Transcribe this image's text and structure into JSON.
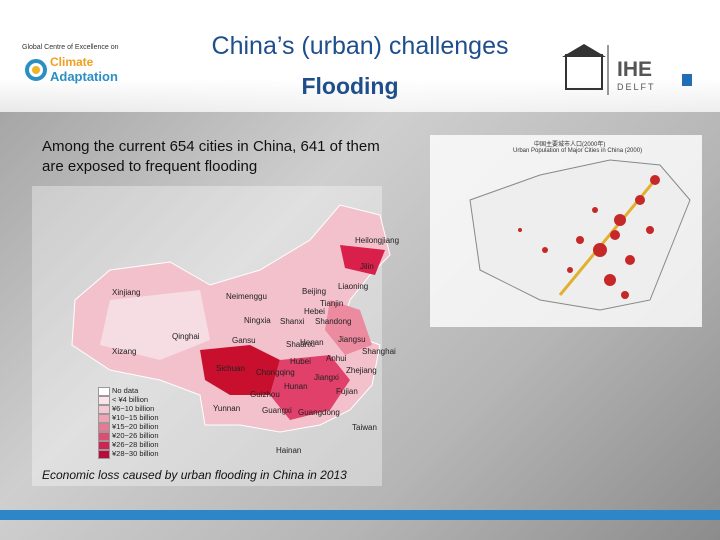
{
  "header": {
    "logo_left": {
      "line1": "Global Centre of Excellence on",
      "line2": "Climate",
      "line3": "Adaptation"
    },
    "title": "China’s (urban) challenges",
    "subtitle": "Flooding",
    "logo_right": {
      "name": "IHE",
      "sub": "DELFT"
    }
  },
  "body": {
    "text": "Among the current 654 cities in China, 641 of them are exposed to frequent flooding",
    "caption": "Economic loss caused by urban flooding in China in 2013"
  },
  "map": {
    "labels": [
      "Heilongjiang",
      "Jilin",
      "Liaoning",
      "Xinjiang",
      "Neimenggu",
      "Beijing",
      "Tianjin",
      "Hebei",
      "Ningxia",
      "Shanxi",
      "Shandong",
      "Qinghai",
      "Gansu",
      "Shaanxi",
      "Henan",
      "Jiangsu",
      "Shanghai",
      "Xizang",
      "Anhui",
      "Hubei",
      "Sichuan",
      "Chongqing",
      "Zhejiang",
      "Hunan",
      "Jiangxi",
      "Fujian",
      "Guizhou",
      "Yunnan",
      "Guangxi",
      "Guangdong",
      "Taiwan",
      "Hainan"
    ],
    "legend": [
      "No data",
      "< ¥4 billion",
      "¥6~10 billion",
      "¥10~15 billion",
      "¥15~20 billion",
      "¥20~26 billion",
      "¥26~28 billion",
      "¥28~30 billion"
    ]
  },
  "population_map": {
    "title_cn": "中国主要城市人口(2000年)",
    "title_en": "Urban Population of Major Cities in China (2000)"
  }
}
